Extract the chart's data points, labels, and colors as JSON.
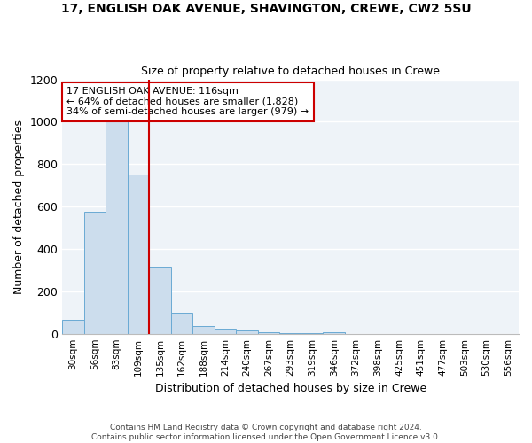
{
  "title": "17, ENGLISH OAK AVENUE, SHAVINGTON, CREWE, CW2 5SU",
  "subtitle": "Size of property relative to detached houses in Crewe",
  "xlabel": "Distribution of detached houses by size in Crewe",
  "ylabel": "Number of detached properties",
  "bar_labels": [
    "30sqm",
    "56sqm",
    "83sqm",
    "109sqm",
    "135sqm",
    "162sqm",
    "188sqm",
    "214sqm",
    "240sqm",
    "267sqm",
    "293sqm",
    "319sqm",
    "346sqm",
    "372sqm",
    "398sqm",
    "425sqm",
    "451sqm",
    "477sqm",
    "503sqm",
    "530sqm",
    "556sqm"
  ],
  "bar_values": [
    65,
    575,
    1000,
    750,
    315,
    100,
    37,
    23,
    15,
    5,
    3,
    2,
    8,
    0,
    0,
    0,
    0,
    0,
    0,
    0,
    0
  ],
  "bar_color": "#ccdded",
  "bar_edge_color": "#6aaad4",
  "ylim": [
    0,
    1200
  ],
  "yticks": [
    0,
    200,
    400,
    600,
    800,
    1000,
    1200
  ],
  "vline_color": "#cc0000",
  "annotation_text": "17 ENGLISH OAK AVENUE: 116sqm\n← 64% of detached houses are smaller (1,828)\n34% of semi-detached houses are larger (979) →",
  "annotation_box_edge": "#cc0000",
  "footer_text": "Contains HM Land Registry data © Crown copyright and database right 2024.\nContains public sector information licensed under the Open Government Licence v3.0.",
  "background_color": "#ffffff",
  "plot_bg_color": "#eef3f8"
}
